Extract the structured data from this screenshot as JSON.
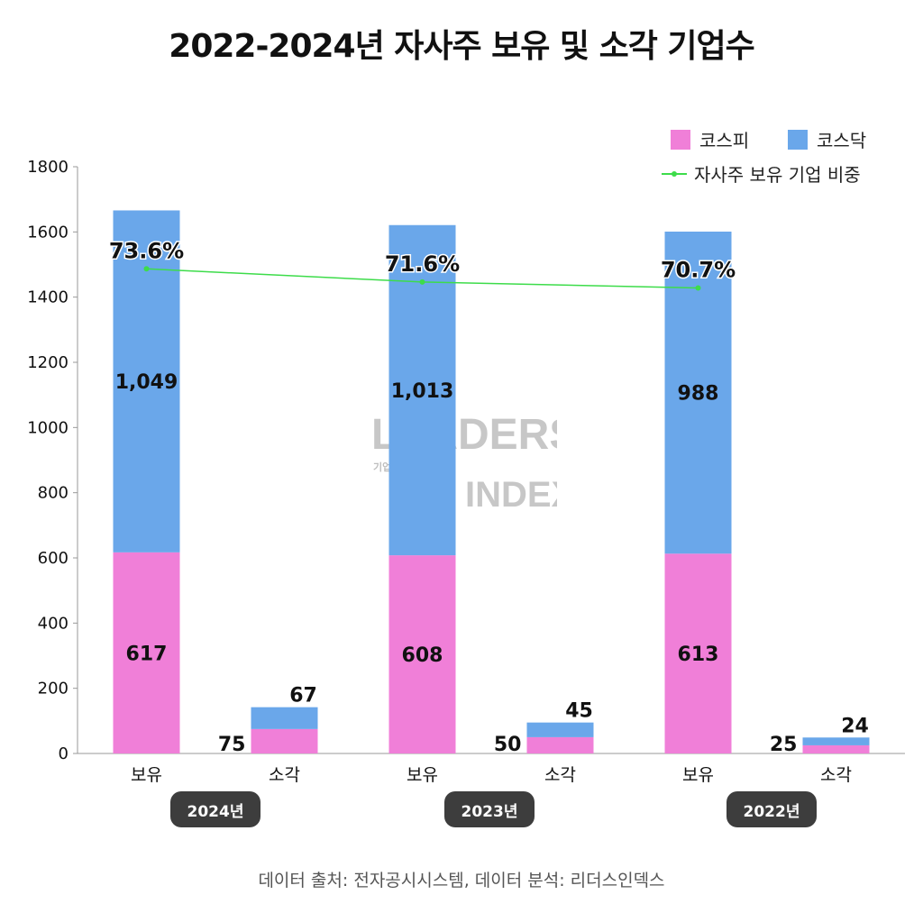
{
  "title": "2022-2024년 자사주 보유 및 소각 기업수",
  "source": "데이터 출처: 전자공시시스템, 데이터 분석: 리더스인덱스",
  "watermark": {
    "line1": "LEADERS",
    "line2": "기업분석연구소",
    "line3": "INDEX"
  },
  "legend": {
    "kospi": "코스피",
    "kosdaq": "코스닥",
    "ratio": "자사주 보유 기업 비중"
  },
  "colors": {
    "kospi": "#f07fd8",
    "kosdaq": "#6aa7ea",
    "ratio": "#3ddc4a",
    "axis": "#888888",
    "pill": "#3d3d3d"
  },
  "chart_data": {
    "type": "bar",
    "stacked": true,
    "title": "2022-2024년 자사주 보유 및 소각 기업수",
    "categories": [
      "보유",
      "소각",
      "보유",
      "소각",
      "보유",
      "소각"
    ],
    "groups": [
      "2024년",
      "2023년",
      "2022년"
    ],
    "ylim": [
      0,
      1800
    ],
    "yticks": [
      0,
      200,
      400,
      600,
      800,
      1000,
      1200,
      1400,
      1600,
      1800
    ],
    "series": [
      {
        "name": "코스피",
        "values": [
          617,
          75,
          608,
          50,
          613,
          25
        ]
      },
      {
        "name": "코스닥",
        "values": [
          1049,
          67,
          1013,
          45,
          988,
          24
        ]
      }
    ],
    "line_series": {
      "name": "자사주 보유 기업 비중",
      "categories_index": [
        0,
        2,
        4
      ],
      "values": [
        73.6,
        71.6,
        70.7
      ],
      "labels": [
        "73.6%",
        "71.6%",
        "70.7%"
      ]
    },
    "legend_position": "top-right"
  }
}
